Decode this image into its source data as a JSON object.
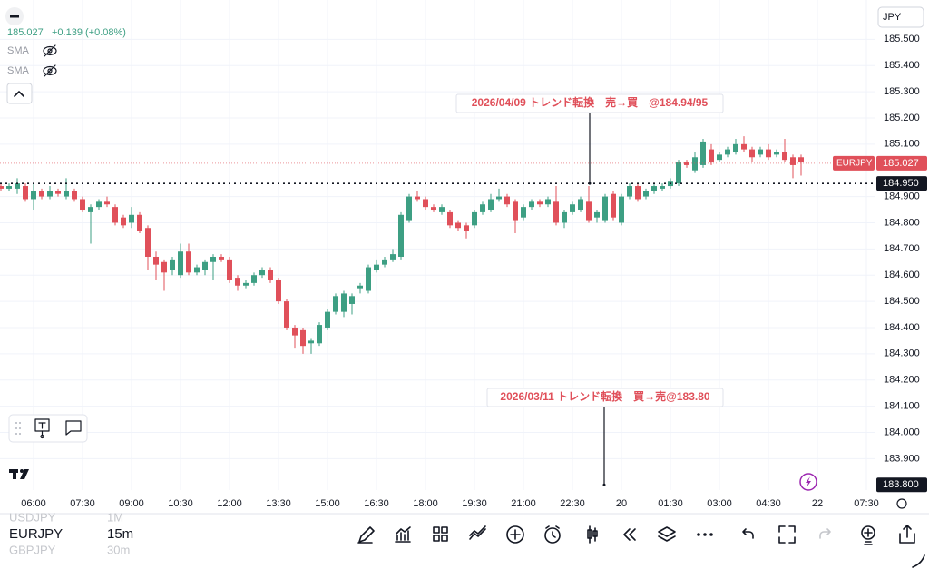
{
  "chart_data": {
    "type": "candlestick",
    "symbol": "EURJPY",
    "up_color": "#3d9f83",
    "down_color": "#e0505a",
    "categories": [
      null,
      null,
      null,
      null,
      "06:00",
      null,
      null,
      null,
      null,
      null,
      "07:30",
      null,
      null,
      null,
      null,
      null,
      "09:00",
      null,
      null,
      null,
      null,
      null,
      "10:30",
      null,
      null,
      null,
      null,
      null,
      "12:00",
      null,
      null,
      null,
      null,
      null,
      "13:30",
      null,
      null,
      null,
      null,
      null,
      "15:00",
      null,
      null,
      null,
      null,
      null,
      "16:30",
      null,
      null,
      null,
      null,
      null,
      "18:00",
      null,
      null,
      null,
      null,
      null,
      "19:30",
      null,
      null,
      null,
      null,
      null,
      "21:00",
      null,
      null,
      null,
      null,
      null,
      "22:30",
      null,
      null,
      null,
      null,
      null,
      "20",
      null,
      null,
      null,
      null,
      null,
      "01:30",
      null,
      null,
      null,
      null,
      null,
      "03:00",
      null,
      null,
      null,
      null,
      null,
      "04:30",
      null,
      null,
      null,
      null,
      null,
      "22",
      null,
      null,
      null,
      null,
      null,
      "07:30"
    ],
    "open": [
      184.94,
      184.93,
      184.93,
      184.94,
      184.89,
      184.92,
      184.9,
      184.92,
      184.9,
      184.92,
      184.89,
      184.84,
      184.86,
      184.88,
      184.86,
      184.82,
      184.8,
      184.83,
      184.78,
      184.67,
      184.65,
      184.62,
      184.6,
      184.69,
      184.61,
      184.62,
      184.65,
      184.67,
      184.66,
      184.59,
      184.56,
      184.57,
      184.6,
      184.62,
      184.58,
      184.5,
      184.4,
      184.39,
      184.34,
      184.34,
      184.4,
      184.46,
      184.46,
      184.49,
      184.55,
      184.54,
      184.62,
      184.64,
      184.66,
      184.67,
      184.81,
      184.9,
      184.89,
      184.86,
      184.84,
      184.84,
      184.8,
      184.79,
      184.79,
      184.84,
      184.85,
      184.89,
      184.9,
      184.88,
      184.82,
      184.86,
      184.88,
      184.87,
      184.88,
      184.8,
      184.84,
      184.85,
      184.88,
      184.82,
      184.81,
      184.91,
      184.8,
      184.9,
      184.94,
      184.9,
      184.92,
      184.93,
      184.94,
      184.95,
      185.03,
      185.0,
      185.02,
      185.08,
      185.04,
      185.06,
      185.07,
      185.1,
      185.08,
      185.06,
      185.08,
      185.06,
      185.07,
      185.05,
      185.05,
      null,
      null,
      null,
      null,
      null,
      null,
      null,
      null
    ],
    "high": [
      184.95,
      184.95,
      184.97,
      184.95,
      184.95,
      184.93,
      184.94,
      184.93,
      184.97,
      184.93,
      184.9,
      184.87,
      184.89,
      184.9,
      184.87,
      184.83,
      184.86,
      184.84,
      184.79,
      184.69,
      184.66,
      184.67,
      184.72,
      184.72,
      184.64,
      184.66,
      184.68,
      184.68,
      184.67,
      184.6,
      184.58,
      184.61,
      184.63,
      184.63,
      184.59,
      184.51,
      184.41,
      184.4,
      184.36,
      184.42,
      184.47,
      184.53,
      184.54,
      184.53,
      184.57,
      184.64,
      184.66,
      184.67,
      184.7,
      184.84,
      184.91,
      184.92,
      184.9,
      184.87,
      184.87,
      184.85,
      184.81,
      184.8,
      184.85,
      184.88,
      184.91,
      184.93,
      184.91,
      184.89,
      184.87,
      184.89,
      184.89,
      184.9,
      184.94,
      184.85,
      184.88,
      184.9,
      184.94,
      184.85,
      184.91,
      184.92,
      184.91,
      184.95,
      184.95,
      184.93,
      184.95,
      184.95,
      184.97,
      185.04,
      185.04,
      185.07,
      185.12,
      185.1,
      185.07,
      185.09,
      185.12,
      185.13,
      185.09,
      185.09,
      185.1,
      185.08,
      185.12,
      185.06,
      185.06,
      null,
      null,
      null,
      null,
      null,
      null,
      null,
      null
    ],
    "low": [
      184.92,
      184.92,
      184.91,
      184.88,
      184.85,
      184.89,
      184.89,
      184.9,
      184.89,
      184.88,
      184.84,
      184.72,
      184.85,
      184.86,
      184.79,
      184.78,
      184.78,
      184.76,
      184.62,
      184.58,
      184.54,
      184.6,
      184.59,
      184.6,
      184.6,
      184.6,
      184.58,
      184.65,
      184.57,
      184.54,
      184.55,
      184.56,
      184.59,
      184.57,
      184.49,
      184.39,
      184.32,
      184.3,
      184.3,
      184.33,
      184.39,
      184.45,
      184.44,
      184.45,
      184.53,
      184.53,
      184.61,
      184.63,
      184.65,
      184.66,
      184.8,
      184.88,
      184.85,
      184.84,
      184.83,
      184.78,
      184.77,
      184.74,
      184.78,
      184.83,
      184.84,
      184.88,
      184.86,
      184.76,
      184.81,
      184.85,
      184.86,
      184.86,
      184.79,
      184.78,
      184.83,
      184.84,
      184.8,
      184.8,
      184.8,
      184.81,
      184.79,
      184.89,
      184.88,
      184.89,
      184.91,
      184.92,
      184.93,
      184.94,
      185.01,
      184.99,
      185.01,
      185.02,
      185.03,
      185.05,
      185.06,
      185.07,
      185.03,
      185.05,
      185.04,
      185.05,
      185.03,
      184.97,
      184.98,
      null,
      null,
      null,
      null,
      null,
      null,
      null,
      null
    ],
    "close": [
      184.93,
      184.94,
      184.95,
      184.89,
      184.92,
      184.9,
      184.92,
      184.91,
      184.92,
      184.89,
      184.85,
      184.86,
      184.88,
      184.87,
      184.8,
      184.79,
      184.83,
      184.77,
      184.67,
      184.64,
      184.61,
      184.66,
      184.69,
      184.61,
      184.63,
      184.65,
      184.67,
      184.66,
      184.58,
      184.56,
      184.57,
      184.6,
      184.62,
      184.58,
      184.5,
      184.4,
      184.37,
      184.33,
      184.35,
      184.41,
      184.46,
      184.52,
      184.53,
      184.52,
      184.56,
      184.63,
      184.64,
      184.66,
      184.68,
      184.83,
      184.9,
      184.89,
      184.86,
      184.85,
      184.86,
      184.79,
      184.78,
      184.77,
      184.84,
      184.87,
      184.89,
      184.9,
      184.87,
      184.81,
      184.86,
      184.88,
      184.87,
      184.89,
      184.8,
      184.84,
      184.87,
      184.89,
      184.81,
      184.84,
      184.9,
      184.82,
      184.9,
      184.94,
      184.89,
      184.92,
      184.94,
      184.94,
      184.96,
      185.03,
      185.02,
      185.05,
      185.11,
      185.03,
      185.06,
      185.08,
      185.1,
      185.08,
      185.05,
      185.08,
      185.05,
      185.07,
      185.04,
      185.02,
      185.03,
      null,
      null,
      null,
      null,
      null,
      null,
      null,
      null
    ],
    "ylim": [
      183.78,
      185.65
    ],
    "yticks": [
      {
        "value": 183.9,
        "label": "183.900"
      },
      {
        "value": 184.0,
        "label": "184.000"
      },
      {
        "value": 184.1,
        "label": "184.100"
      },
      {
        "value": 184.2,
        "label": "184.200"
      },
      {
        "value": 184.3,
        "label": "184.300"
      },
      {
        "value": 184.4,
        "label": "184.400"
      },
      {
        "value": 184.5,
        "label": "184.500"
      },
      {
        "value": 184.6,
        "label": "184.600"
      },
      {
        "value": 184.7,
        "label": "184.700"
      },
      {
        "value": 184.8,
        "label": "184.800"
      },
      {
        "value": 184.9,
        "label": "184.900"
      },
      {
        "value": 185.1,
        "label": "185.100"
      },
      {
        "value": 185.2,
        "label": "185.200"
      },
      {
        "value": 185.3,
        "label": "185.300"
      },
      {
        "value": 185.4,
        "label": "185.400"
      },
      {
        "value": 185.5,
        "label": "185.500"
      }
    ],
    "grid": true,
    "price_lines": [
      {
        "name": "EURJPY",
        "value": 185.027,
        "label": "185.027",
        "color": "#e0505a"
      },
      {
        "value": 184.95,
        "label": "184.950",
        "color": "#131722"
      }
    ],
    "annotations": [
      {
        "text": "2026/04/09 トレンド転換　売→買　@184.94/95",
        "value": 184.95
      },
      {
        "text": "2026/03/11 トレンド転換　買→売@183.80",
        "value": 183.8,
        "label": "183.800"
      }
    ]
  },
  "header": {
    "price": "185.027",
    "change": "+0.139 (+0.08%)",
    "indicators": [
      "SMA",
      "SMA"
    ],
    "currency": "JPY"
  },
  "watchlist": [
    {
      "symbol": "USDJPY",
      "interval": "1M"
    },
    {
      "symbol": "EURJPY",
      "interval": "15m"
    },
    {
      "symbol": "GBPJPY",
      "interval": "30m"
    }
  ]
}
